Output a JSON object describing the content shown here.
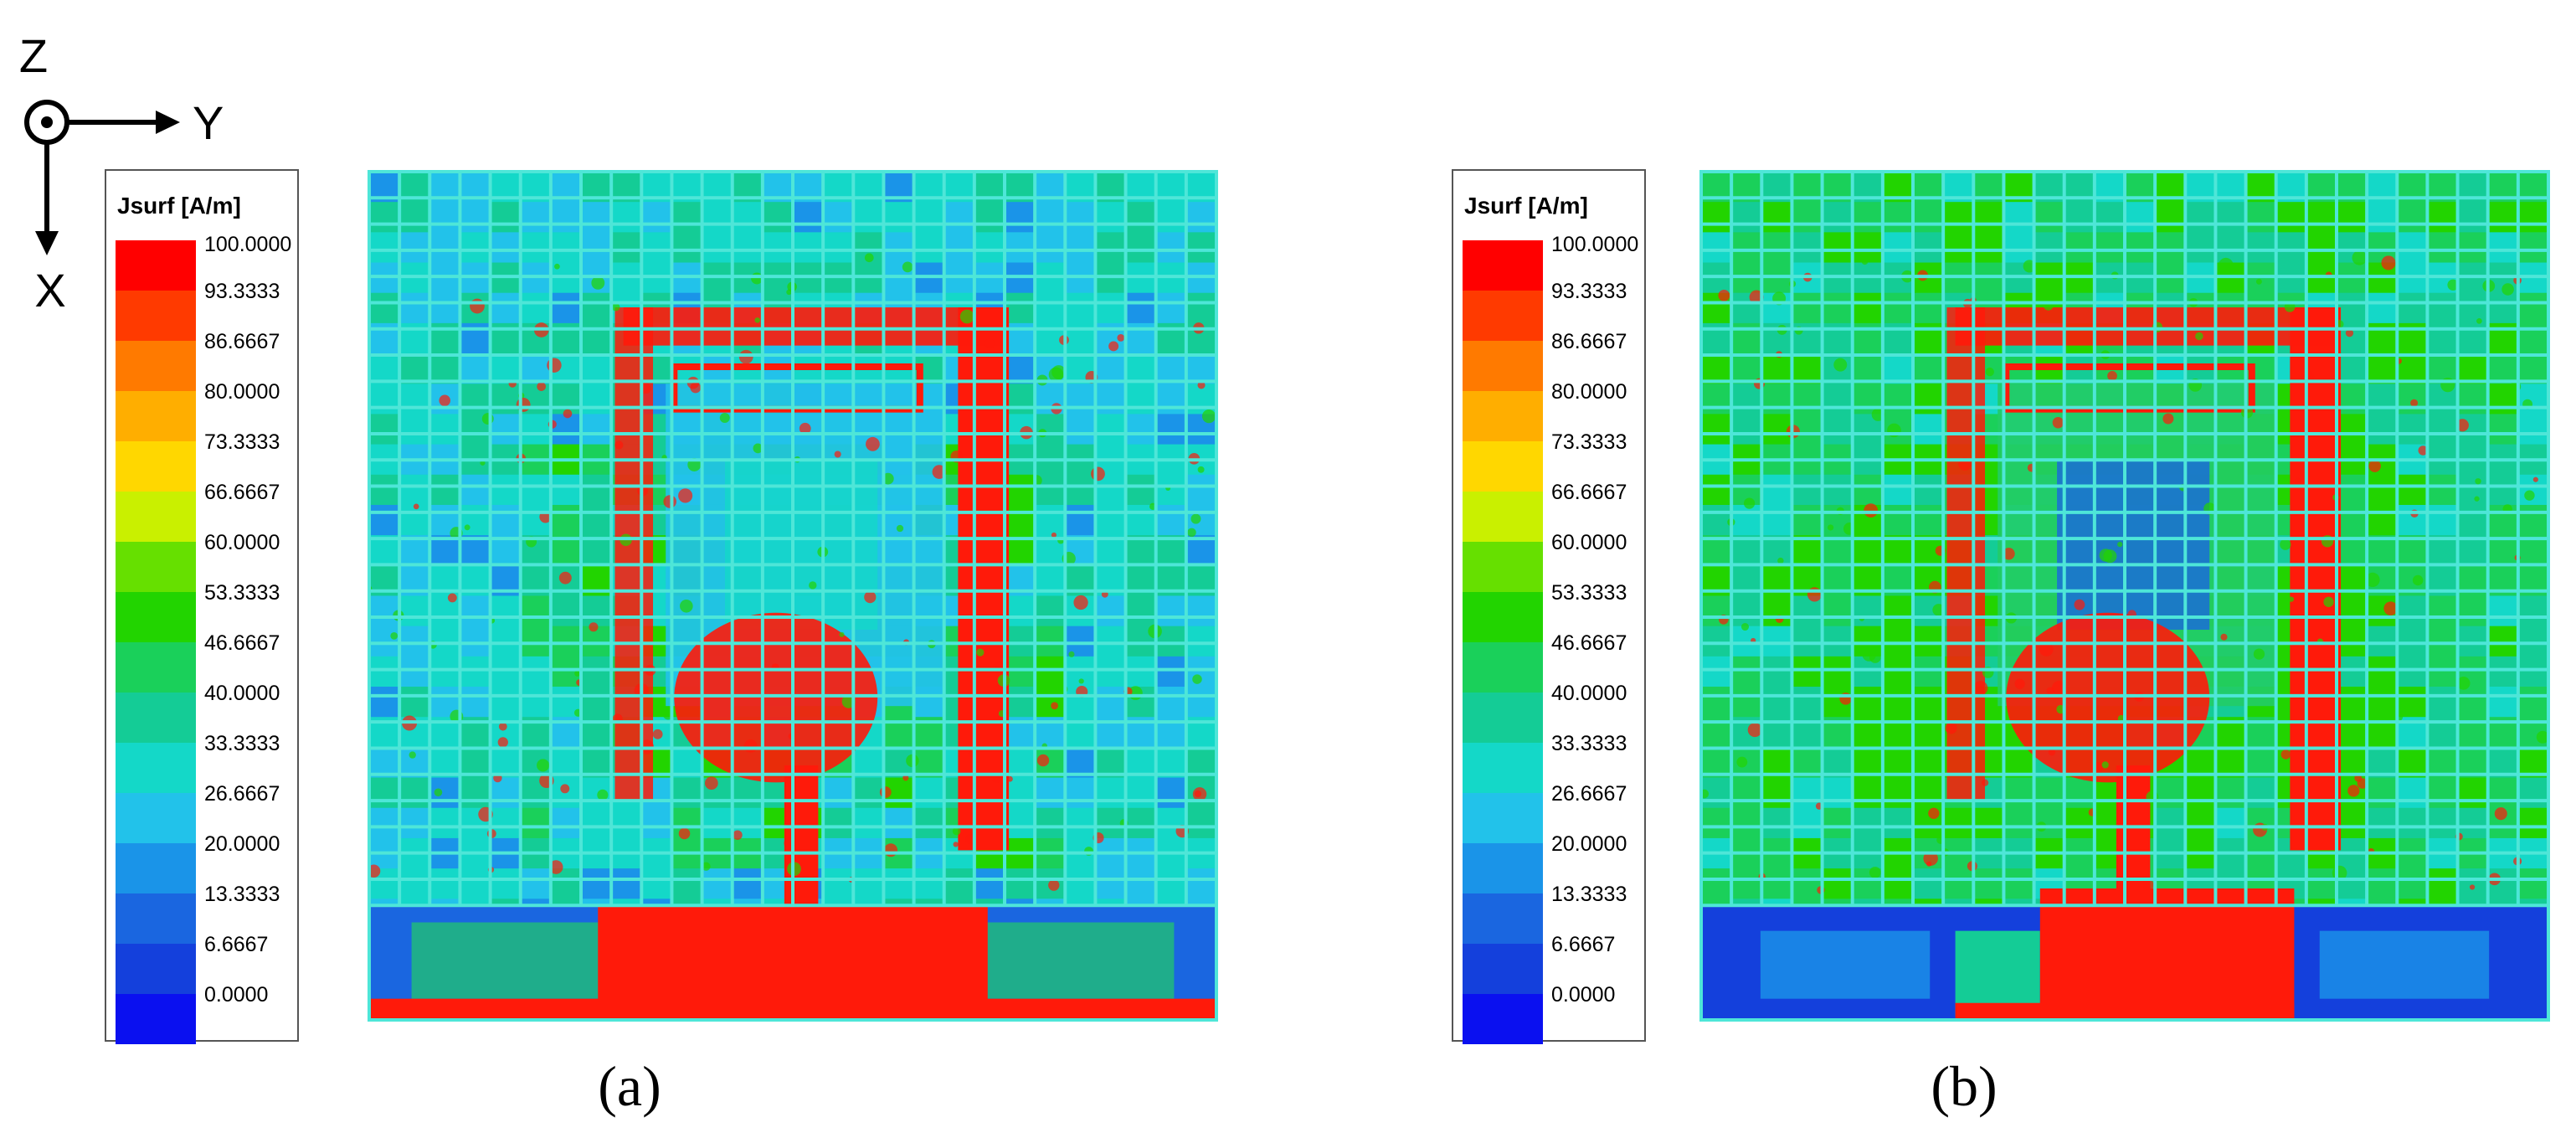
{
  "axes": {
    "z": "Z",
    "y": "Y",
    "x": "X"
  },
  "legend": {
    "title": "Jsurf [A/m]",
    "ticks": [
      "100.0000",
      "93.3333",
      "86.6667",
      "80.0000",
      "73.3333",
      "66.6667",
      "60.0000",
      "53.3333",
      "46.6667",
      "40.0000",
      "33.3333",
      "26.6667",
      "20.0000",
      "13.3333",
      "6.6667",
      "0.0000"
    ],
    "colors": [
      "#ff0000",
      "#ff3a00",
      "#ff7a00",
      "#ffae00",
      "#ffd700",
      "#c9f000",
      "#66e000",
      "#22d400",
      "#1ad05a",
      "#14cc96",
      "#14d8c8",
      "#22c2ea",
      "#1a94e8",
      "#1a66e0",
      "#1440dc",
      "#0a10f0"
    ]
  },
  "panels": [
    {
      "caption": "(a)"
    },
    {
      "caption": "(b)"
    }
  ],
  "colors": {
    "grid": "#4ee6d8",
    "hot": "#ff1a0a",
    "cold": "#2a5fe8",
    "mid": "#22cc66"
  }
}
